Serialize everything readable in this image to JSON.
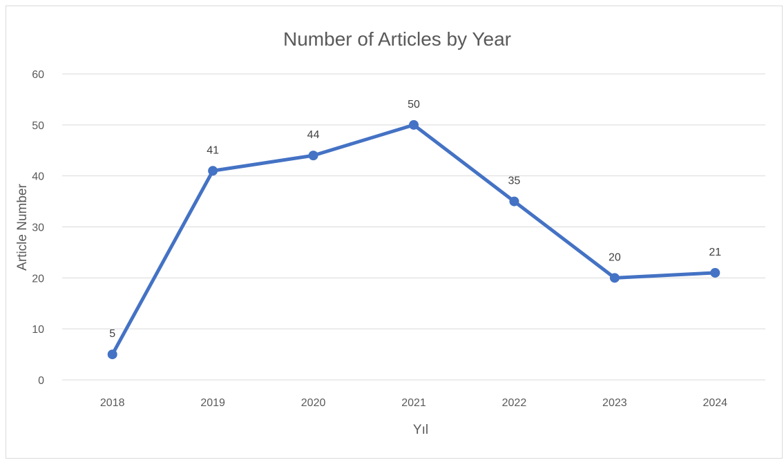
{
  "chart_data": {
    "type": "line",
    "title": "Number of Articles by Year",
    "xlabel": "Yıl",
    "ylabel": "Article Number",
    "categories": [
      "2018",
      "2019",
      "2020",
      "2021",
      "2022",
      "2023",
      "2024"
    ],
    "series": [
      {
        "values": [
          5,
          41,
          44,
          50,
          35,
          20,
          21
        ],
        "color": "#4472c4"
      }
    ],
    "ylim": [
      0,
      60
    ],
    "yticks": [
      "0",
      "10",
      "20",
      "30",
      "40",
      "50",
      "60"
    ],
    "data_labels": true,
    "grid": true,
    "legend": "none",
    "colors": {
      "line": "#4472c4",
      "grid": "#d9d9d9",
      "text": "#595959"
    }
  }
}
